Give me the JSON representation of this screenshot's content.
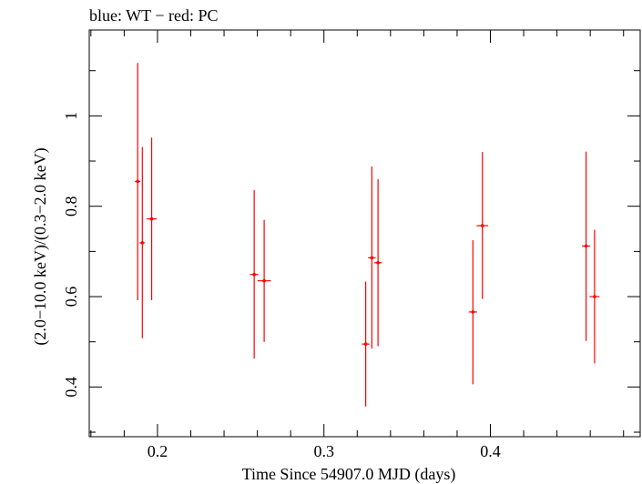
{
  "chart_data": {
    "type": "scatter",
    "title": "blue: WT − red: PC",
    "xlabel": "Time Since 54907.0 MJD (days)",
    "ylabel": "(2.0−10.0 keV)/(0.3−2.0 keV)",
    "xlim": [
      0.159,
      0.49
    ],
    "ylim": [
      0.29,
      1.19
    ],
    "xticks_major": [
      0.2,
      0.3,
      0.4
    ],
    "xtick_labels": [
      "0.2",
      "0.3",
      "0.4"
    ],
    "xticks_minor": [
      0.16,
      0.18,
      0.22,
      0.24,
      0.26,
      0.28,
      0.32,
      0.34,
      0.36,
      0.38,
      0.42,
      0.44,
      0.46,
      0.48
    ],
    "yticks_major": [
      0.4,
      0.6,
      0.8,
      1.0
    ],
    "ytick_labels": [
      "0.4",
      "0.6",
      "0.8",
      "1"
    ],
    "yticks_minor": [
      0.3,
      0.5,
      0.7,
      0.9,
      1.1
    ],
    "series": [
      {
        "name": "PC",
        "color": "#ff0000",
        "points": [
          {
            "x": 0.1881,
            "xerr": 0.0016,
            "y": 0.855,
            "ylo": 0.592,
            "yhi": 1.117
          },
          {
            "x": 0.1909,
            "xerr": 0.0016,
            "y": 0.719,
            "ylo": 0.508,
            "yhi": 0.931
          },
          {
            "x": 0.1965,
            "xerr": 0.003,
            "y": 0.772,
            "ylo": 0.592,
            "yhi": 0.952
          },
          {
            "x": 0.2581,
            "xerr": 0.0025,
            "y": 0.649,
            "ylo": 0.463,
            "yhi": 0.836
          },
          {
            "x": 0.2641,
            "xerr": 0.004,
            "y": 0.635,
            "ylo": 0.5,
            "yhi": 0.77
          },
          {
            "x": 0.3251,
            "xerr": 0.0023,
            "y": 0.495,
            "ylo": 0.357,
            "yhi": 0.633
          },
          {
            "x": 0.3288,
            "xerr": 0.0023,
            "y": 0.686,
            "ylo": 0.485,
            "yhi": 0.888
          },
          {
            "x": 0.3325,
            "xerr": 0.0023,
            "y": 0.675,
            "ylo": 0.49,
            "yhi": 0.86
          },
          {
            "x": 0.3895,
            "xerr": 0.0025,
            "y": 0.566,
            "ylo": 0.406,
            "yhi": 0.725
          },
          {
            "x": 0.3952,
            "xerr": 0.0035,
            "y": 0.757,
            "ylo": 0.595,
            "yhi": 0.92
          },
          {
            "x": 0.4575,
            "xerr": 0.0025,
            "y": 0.712,
            "ylo": 0.502,
            "yhi": 0.921
          },
          {
            "x": 0.4626,
            "xerr": 0.003,
            "y": 0.6,
            "ylo": 0.452,
            "yhi": 0.748
          }
        ]
      }
    ]
  }
}
